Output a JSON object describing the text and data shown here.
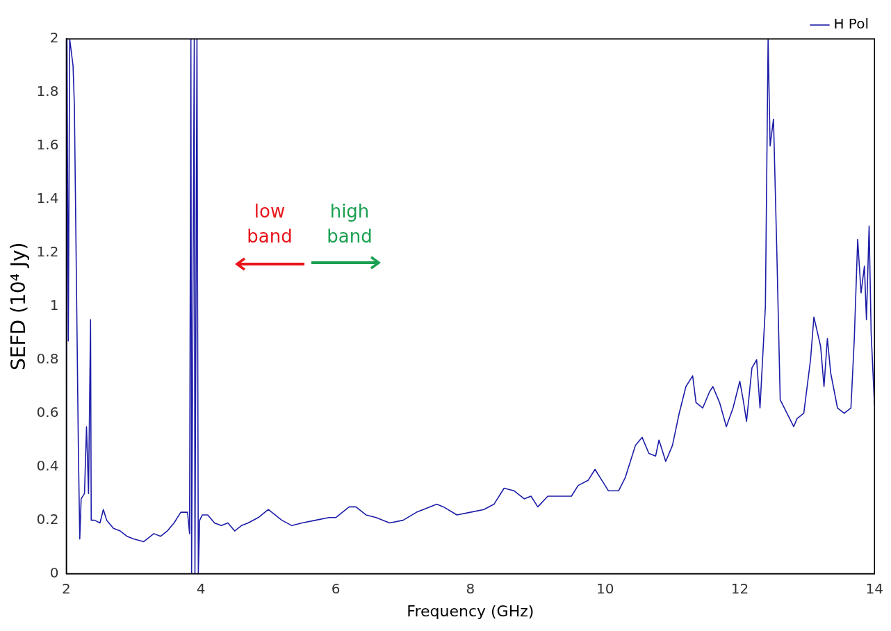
{
  "chart_data": {
    "type": "line",
    "xlabel": "Frequency (GHz)",
    "ylabel": "SEFD (10⁴ Jy)",
    "xlim": [
      2,
      14
    ],
    "ylim": [
      0,
      2
    ],
    "xticks": [
      2,
      4,
      6,
      8,
      10,
      12,
      14
    ],
    "yticks": [
      0,
      {
        "value": 0.2,
        "label": "0.2"
      },
      {
        "value": 0.4,
        "label": "0.4"
      },
      {
        "value": 0.6,
        "label": "0.6"
      },
      {
        "value": 0.8,
        "label": "0.8"
      },
      1,
      {
        "value": 1.2,
        "label": "1.2"
      },
      {
        "value": 1.4,
        "label": "1.4"
      },
      {
        "value": 1.6,
        "label": "1.6"
      },
      {
        "value": 1.8,
        "label": "1.8"
      },
      2
    ],
    "grid": false,
    "legend": "top right",
    "marker": "none",
    "line_style": "solid",
    "annotations": [
      "low band",
      "high band"
    ],
    "series": [
      {
        "name": "H Pol",
        "color": "#1c1ca8",
        "x": [
          2,
          2.01,
          2.03,
          2.05,
          2.1,
          2.12,
          2.15,
          2.18,
          2.2,
          2.22,
          2.27,
          2.3,
          2.33,
          2.36,
          2.37,
          2.42,
          2.5,
          2.55,
          2.6,
          2.7,
          2.8,
          2.9,
          3,
          3.15,
          3.3,
          3.4,
          3.5,
          3.6,
          3.7,
          3.8,
          3.83,
          3.85,
          3.86,
          3.9,
          3.91,
          3.94,
          3.96,
          3.98,
          4.02,
          4.1,
          4.2,
          4.3,
          4.4,
          4.5,
          4.6,
          4.7,
          4.85,
          5,
          5.1,
          5.2,
          5.35,
          5.5,
          5.7,
          5.9,
          6,
          6.2,
          6.3,
          6.45,
          6.6,
          6.8,
          7,
          7.2,
          7.3,
          7.5,
          7.6,
          7.8,
          8,
          8.2,
          8.35,
          8.5,
          8.65,
          8.8,
          8.9,
          9,
          9.15,
          9.3,
          9.5,
          9.6,
          9.75,
          9.85,
          9.95,
          10.05,
          10.2,
          10.3,
          10.45,
          10.55,
          10.65,
          10.75,
          10.8,
          10.9,
          11,
          11.1,
          11.2,
          11.3,
          11.35,
          11.45,
          11.55,
          11.6,
          11.7,
          11.8,
          11.9,
          12,
          12.05,
          12.1,
          12.18,
          12.25,
          12.3,
          12.38,
          12.42,
          12.45,
          12.5,
          12.55,
          12.6,
          12.7,
          12.8,
          12.85,
          12.95,
          13.05,
          13.1,
          13.2,
          13.25,
          13.3,
          13.35,
          13.45,
          13.55,
          13.65,
          13.7,
          13.75,
          13.8,
          13.85,
          13.88,
          13.92,
          13.95,
          14
        ],
        "values": [
          0.35,
          2,
          0.87,
          2,
          1.9,
          1.75,
          1.1,
          0.45,
          0.13,
          0.28,
          0.3,
          0.55,
          0.3,
          0.95,
          0.2,
          0.2,
          0.19,
          0.24,
          0.2,
          0.17,
          0.16,
          0.14,
          0.13,
          0.12,
          0.15,
          0.14,
          0.16,
          0.19,
          0.23,
          0.23,
          0.15,
          2,
          0,
          2,
          0,
          2,
          0,
          0.2,
          0.22,
          0.22,
          0.19,
          0.18,
          0.19,
          0.16,
          0.18,
          0.19,
          0.21,
          0.24,
          0.22,
          0.2,
          0.18,
          0.19,
          0.2,
          0.21,
          0.21,
          0.25,
          0.25,
          0.22,
          0.21,
          0.19,
          0.2,
          0.23,
          0.24,
          0.26,
          0.25,
          0.22,
          0.23,
          0.24,
          0.26,
          0.32,
          0.31,
          0.28,
          0.29,
          0.25,
          0.29,
          0.29,
          0.29,
          0.33,
          0.35,
          0.39,
          0.35,
          0.31,
          0.31,
          0.36,
          0.48,
          0.51,
          0.45,
          0.44,
          0.5,
          0.42,
          0.48,
          0.6,
          0.7,
          0.74,
          0.64,
          0.62,
          0.68,
          0.7,
          0.64,
          0.55,
          0.62,
          0.72,
          0.65,
          0.57,
          0.77,
          0.8,
          0.62,
          1,
          2,
          1.6,
          1.7,
          1.2,
          0.65,
          0.6,
          0.55,
          0.58,
          0.6,
          0.8,
          0.96,
          0.85,
          0.7,
          0.88,
          0.75,
          0.62,
          0.6,
          0.62,
          0.88,
          1.25,
          1.05,
          1.15,
          0.95,
          1.3,
          0.9,
          0.63
        ]
      }
    ]
  }
}
